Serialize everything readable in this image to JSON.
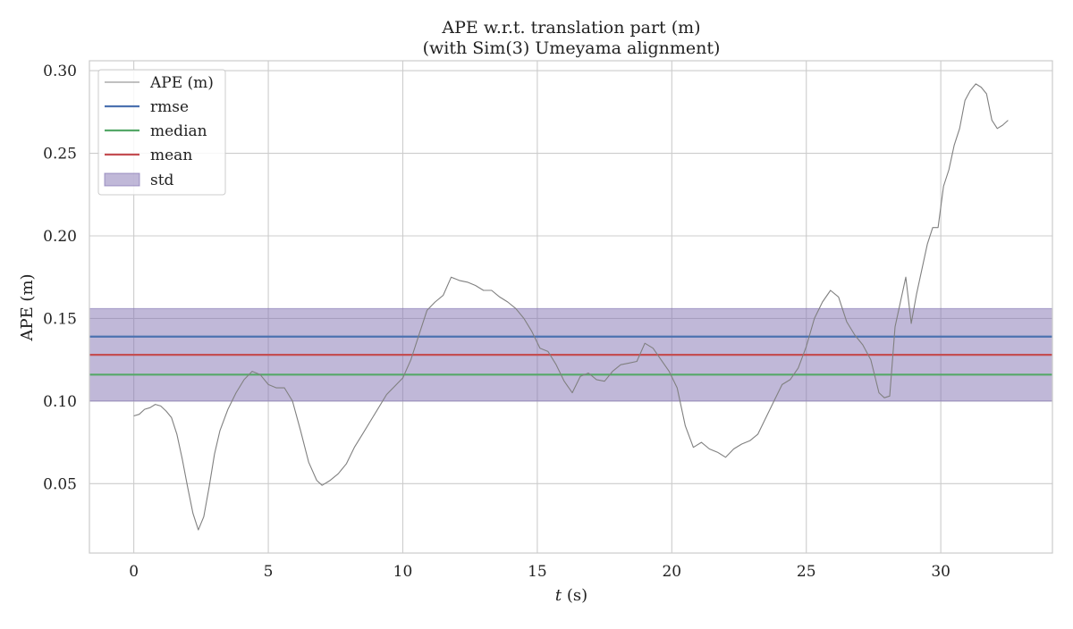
{
  "chart_data": {
    "type": "line",
    "title": "APE w.r.t. translation part (m)",
    "subtitle": "(with Sim(3) Umeyama alignment)",
    "xlabel_var": "t",
    "xlabel_unit": " (s)",
    "ylabel": "APE (m)",
    "xlim": [
      -1.65,
      34.15
    ],
    "ylim": [
      0.008,
      0.306
    ],
    "x_ticks": [
      0,
      5,
      10,
      15,
      20,
      25,
      30
    ],
    "y_ticks": [
      0.05,
      0.1,
      0.15,
      0.2,
      0.25,
      0.3
    ],
    "x_tick_labels": [
      "0",
      "5",
      "10",
      "15",
      "20",
      "25",
      "30"
    ],
    "y_tick_labels": [
      "0.05",
      "0.10",
      "0.15",
      "0.20",
      "0.25",
      "0.30"
    ],
    "grid": true,
    "legend_position": "top-left",
    "series": [
      {
        "name": "APE (m)",
        "color": "#808080",
        "x": [
          0,
          0.2,
          0.4,
          0.6,
          0.8,
          1.0,
          1.2,
          1.4,
          1.6,
          1.8,
          2.0,
          2.2,
          2.4,
          2.6,
          2.8,
          3.0,
          3.2,
          3.5,
          3.8,
          4.1,
          4.4,
          4.7,
          5.0,
          5.3,
          5.6,
          5.9,
          6.2,
          6.5,
          6.8,
          7.0,
          7.3,
          7.6,
          7.9,
          8.2,
          8.5,
          8.8,
          9.1,
          9.4,
          9.7,
          10.0,
          10.3,
          10.6,
          10.9,
          11.2,
          11.5,
          11.8,
          12.1,
          12.4,
          12.7,
          13.0,
          13.3,
          13.6,
          13.9,
          14.2,
          14.5,
          14.8,
          15.1,
          15.4,
          15.7,
          16.0,
          16.3,
          16.6,
          16.9,
          17.2,
          17.5,
          17.8,
          18.1,
          18.4,
          18.7,
          19.0,
          19.3,
          19.6,
          19.9,
          20.2,
          20.5,
          20.8,
          21.1,
          21.4,
          21.7,
          22.0,
          22.3,
          22.6,
          22.9,
          23.2,
          23.5,
          23.8,
          24.1,
          24.4,
          24.7,
          25.0,
          25.3,
          25.6,
          25.9,
          26.2,
          26.5,
          26.8,
          27.1,
          27.4,
          27.7,
          27.9,
          28.1,
          28.3,
          28.5,
          28.7,
          28.9,
          29.1,
          29.3,
          29.5,
          29.7,
          29.9,
          30.1,
          30.3,
          30.5,
          30.7,
          30.9,
          31.1,
          31.3,
          31.5,
          31.7,
          31.9,
          32.1,
          32.3,
          32.5
        ],
        "y": [
          0.091,
          0.092,
          0.095,
          0.096,
          0.098,
          0.097,
          0.094,
          0.09,
          0.08,
          0.065,
          0.048,
          0.032,
          0.022,
          0.03,
          0.048,
          0.068,
          0.082,
          0.095,
          0.105,
          0.113,
          0.118,
          0.116,
          0.11,
          0.108,
          0.108,
          0.1,
          0.082,
          0.063,
          0.052,
          0.049,
          0.052,
          0.056,
          0.062,
          0.072,
          0.08,
          0.088,
          0.096,
          0.104,
          0.109,
          0.114,
          0.125,
          0.14,
          0.155,
          0.16,
          0.164,
          0.175,
          0.173,
          0.172,
          0.17,
          0.167,
          0.167,
          0.163,
          0.16,
          0.156,
          0.15,
          0.142,
          0.132,
          0.13,
          0.122,
          0.112,
          0.105,
          0.115,
          0.117,
          0.113,
          0.112,
          0.118,
          0.122,
          0.123,
          0.124,
          0.135,
          0.132,
          0.125,
          0.118,
          0.108,
          0.085,
          0.072,
          0.075,
          0.071,
          0.069,
          0.066,
          0.071,
          0.074,
          0.076,
          0.08,
          0.09,
          0.1,
          0.11,
          0.113,
          0.12,
          0.133,
          0.15,
          0.16,
          0.167,
          0.163,
          0.148,
          0.14,
          0.134,
          0.125,
          0.105,
          0.102,
          0.103,
          0.145,
          0.16,
          0.175,
          0.147,
          0.165,
          0.18,
          0.195,
          0.205,
          0.205,
          0.23,
          0.24,
          0.255,
          0.265,
          0.282,
          0.288,
          0.292,
          0.29,
          0.286,
          0.27,
          0.265,
          0.267,
          0.27
        ]
      },
      {
        "name": "rmse",
        "color": "#4c72b0",
        "value": 0.139
      },
      {
        "name": "median",
        "color": "#55a868",
        "value": 0.116
      },
      {
        "name": "mean",
        "color": "#c44e52",
        "value": 0.128
      }
    ],
    "band": {
      "name": "std",
      "color": "#8172b2",
      "lower": 0.1,
      "upper": 0.156
    }
  }
}
